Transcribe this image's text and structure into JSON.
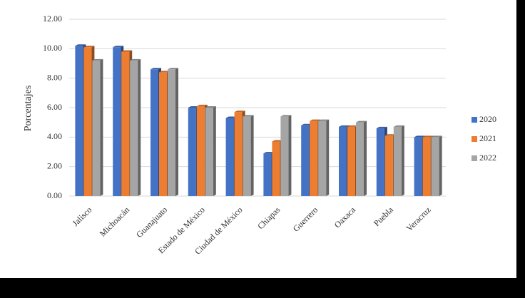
{
  "chart_data": {
    "type": "bar",
    "y_label": "Porcentajes",
    "categories": [
      "Jalisco",
      "Michoacán",
      "Guanajuato",
      "Estado de México",
      "Ciudad de México",
      "Chiapas",
      "Guerrero",
      "Oaxaca",
      "Puebla",
      "Veracruz"
    ],
    "series": [
      {
        "name": "2020",
        "color": "#4472c4",
        "values": [
          10.2,
          10.1,
          8.6,
          6.0,
          5.3,
          2.9,
          4.8,
          4.7,
          4.6,
          4.0
        ]
      },
      {
        "name": "2021",
        "color": "#ed7d31",
        "values": [
          10.1,
          9.8,
          8.4,
          6.1,
          5.7,
          3.7,
          5.1,
          4.7,
          4.1,
          4.0
        ]
      },
      {
        "name": "2022",
        "color": "#a5a5a5",
        "values": [
          9.2,
          9.2,
          8.6,
          6.0,
          5.4,
          5.4,
          5.1,
          5.0,
          4.7,
          4.0
        ]
      }
    ],
    "ylim": [
      0,
      12
    ],
    "yticks": [
      {
        "value": 0,
        "label": "0.00"
      },
      {
        "value": 2,
        "label": "2.00"
      },
      {
        "value": 4,
        "label": "4.00"
      },
      {
        "value": 6,
        "label": "6.00"
      },
      {
        "value": 8,
        "label": "8.00"
      },
      {
        "value": 10,
        "label": "10.00"
      },
      {
        "value": 12,
        "label": "12.00"
      }
    ],
    "grid": true,
    "legend": "right"
  }
}
